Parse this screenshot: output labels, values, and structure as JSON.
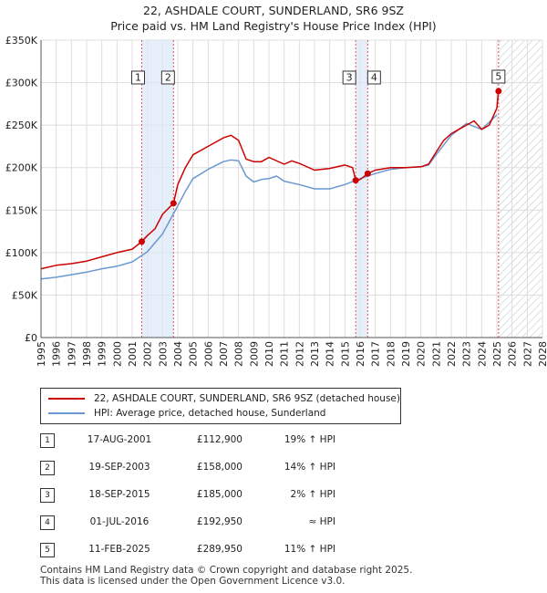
{
  "title": "22, ASHDALE COURT, SUNDERLAND, SR6 9SZ",
  "subtitle": "Price paid vs. HM Land Registry's House Price Index (HPI)",
  "legend": {
    "property": "22, ASHDALE COURT, SUNDERLAND, SR6 9SZ (detached house)",
    "hpi": "HPI: Average price, detached house, Sunderland"
  },
  "colors": {
    "property": "#cc0000",
    "hpi": "#6a98d0",
    "band": "#dce7f7",
    "grid": "#dddddd"
  },
  "sales": [
    {
      "num": "1",
      "date": "17-AUG-2001",
      "price": "£112,900",
      "hpi": "19% ↑ HPI"
    },
    {
      "num": "2",
      "date": "19-SEP-2003",
      "price": "£158,000",
      "hpi": "14% ↑ HPI"
    },
    {
      "num": "3",
      "date": "18-SEP-2015",
      "price": "£185,000",
      "hpi": "2% ↑ HPI"
    },
    {
      "num": "4",
      "date": "01-JUL-2016",
      "price": "£192,950",
      "hpi": "≈ HPI"
    },
    {
      "num": "5",
      "date": "11-FEB-2025",
      "price": "£289,950",
      "hpi": "11% ↑ HPI"
    }
  ],
  "footer": [
    "Contains HM Land Registry data © Crown copyright and database right 2025.",
    "This data is licensed under the Open Government Licence v3.0."
  ],
  "chart_data": {
    "type": "line",
    "title": "22, ASHDALE COURT, SUNDERLAND, SR6 9SZ",
    "subtitle": "Price paid vs. HM Land Registry's House Price Index (HPI)",
    "xlabel": "",
    "ylabel": "",
    "xlim": [
      1995,
      2028
    ],
    "ylim": [
      0,
      350000
    ],
    "x_ticks": [
      "1995",
      "1996",
      "1997",
      "1998",
      "1999",
      "2000",
      "2001",
      "2002",
      "2003",
      "2004",
      "2005",
      "2006",
      "2007",
      "2008",
      "2009",
      "2010",
      "2011",
      "2012",
      "2013",
      "2014",
      "2015",
      "2016",
      "2017",
      "2018",
      "2019",
      "2020",
      "2021",
      "2022",
      "2023",
      "2024",
      "2025",
      "2026",
      "2027",
      "2028"
    ],
    "y_ticks": [
      {
        "value": 0,
        "label": "£0"
      },
      {
        "value": 50000,
        "label": "£50K"
      },
      {
        "value": 100000,
        "label": "£100K"
      },
      {
        "value": 150000,
        "label": "£150K"
      },
      {
        "value": 200000,
        "label": "£200K"
      },
      {
        "value": 250000,
        "label": "£250K"
      },
      {
        "value": 300000,
        "label": "£300K"
      },
      {
        "value": 350000,
        "label": "£350K"
      }
    ],
    "grid": true,
    "legend_position": "below",
    "hatched_region": [
      2025.1,
      2028
    ],
    "shaded_bands": [
      [
        2001.63,
        2003.72
      ],
      [
        2015.71,
        2016.5
      ]
    ],
    "markers": [
      {
        "label": "1",
        "x": 2001.63,
        "y": 112900
      },
      {
        "label": "2",
        "x": 2003.72,
        "y": 158000
      },
      {
        "label": "3",
        "x": 2015.71,
        "y": 185000
      },
      {
        "label": "4",
        "x": 2016.5,
        "y": 192950
      },
      {
        "label": "5",
        "x": 2025.11,
        "y": 289950
      }
    ],
    "series": [
      {
        "name": "22, ASHDALE COURT, SUNDERLAND, SR6 9SZ (detached house)",
        "x": [
          1995,
          1996,
          1997,
          1998,
          1999,
          2000,
          2001,
          2001.63,
          2002,
          2002.5,
          2003,
          2003.72,
          2004,
          2004.5,
          2005,
          2006,
          2007,
          2007.5,
          2008,
          2008.5,
          2009,
          2009.5,
          2010,
          2011,
          2011.5,
          2012,
          2013,
          2014,
          2015,
          2015.5,
          2015.71,
          2016,
          2016.5,
          2017,
          2018,
          2019,
          2020,
          2020.5,
          2021,
          2021.5,
          2022,
          2022.5,
          2023,
          2023.5,
          2024,
          2024.5,
          2025,
          2025.11
        ],
        "values": [
          81000,
          85000,
          87000,
          90000,
          95000,
          100000,
          104000,
          112900,
          120000,
          128000,
          145000,
          158000,
          180000,
          200000,
          215000,
          225000,
          235000,
          238000,
          232000,
          210000,
          207000,
          207000,
          212000,
          204000,
          208000,
          205000,
          197000,
          199000,
          203000,
          200000,
          185000,
          186000,
          192950,
          197000,
          200000,
          200000,
          201000,
          204000,
          218000,
          232000,
          240000,
          245000,
          250000,
          255000,
          245000,
          250000,
          270000,
          289950
        ]
      },
      {
        "name": "HPI: Average price, detached house, Sunderland",
        "x": [
          1995,
          1996,
          1997,
          1998,
          1999,
          2000,
          2001,
          2002,
          2003,
          2004,
          2004.5,
          2005,
          2006,
          2007,
          2007.5,
          2008,
          2008.5,
          2009,
          2009.5,
          2010,
          2010.5,
          2011,
          2012,
          2013,
          2014,
          2015,
          2016,
          2017,
          2018,
          2019,
          2020,
          2020.5,
          2021,
          2022,
          2023,
          2024,
          2025
        ],
        "values": [
          69000,
          71000,
          74000,
          77000,
          81000,
          84000,
          89000,
          101000,
          122000,
          155000,
          172000,
          187000,
          198000,
          207000,
          209000,
          208000,
          190000,
          183000,
          186000,
          187000,
          190000,
          184000,
          180000,
          175000,
          175000,
          180000,
          187000,
          193000,
          198000,
          200000,
          201000,
          203000,
          215000,
          238000,
          252000,
          245000,
          262000
        ]
      }
    ]
  }
}
